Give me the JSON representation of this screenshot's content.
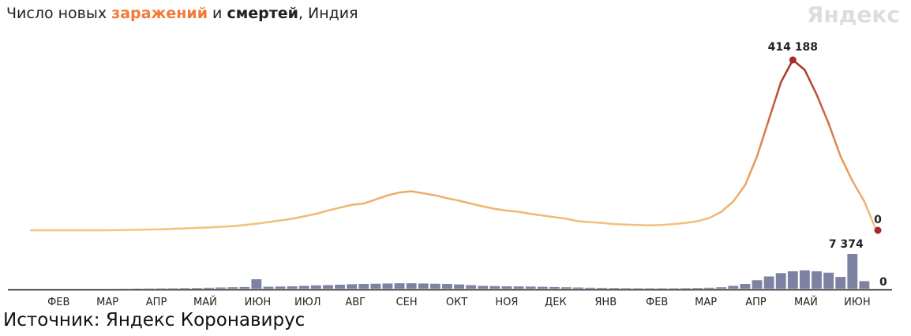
{
  "chart_data": {
    "type": "line-bar",
    "title_parts": [
      "Число новых ",
      " и ",
      ", Индия"
    ],
    "brand": "Яндекс",
    "source": "Источник: Яндекс Коронавирус",
    "xlim": [
      0,
      71
    ],
    "xticks": [
      {
        "value": 2.4,
        "label": "ФЕВ"
      },
      {
        "value": 6.5,
        "label": "МАР"
      },
      {
        "value": 10.6,
        "label": "АПР"
      },
      {
        "value": 14.7,
        "label": "МАЙ"
      },
      {
        "value": 19.1,
        "label": "ИЮН"
      },
      {
        "value": 23.3,
        "label": "ИЮЛ"
      },
      {
        "value": 27.3,
        "label": "АВГ"
      },
      {
        "value": 31.6,
        "label": "СЕН"
      },
      {
        "value": 35.8,
        "label": "ОКТ"
      },
      {
        "value": 40,
        "label": "НОЯ"
      },
      {
        "value": 44.1,
        "label": "ДЕК"
      },
      {
        "value": 48.3,
        "label": "ЯНВ"
      },
      {
        "value": 52.6,
        "label": "ФЕВ"
      },
      {
        "value": 56.7,
        "label": "МАР"
      },
      {
        "value": 60.9,
        "label": "АПР"
      },
      {
        "value": 65.1,
        "label": "МАЙ"
      },
      {
        "value": 69.4,
        "label": "ИЮН"
      }
    ],
    "series": [
      {
        "name": "заражений",
        "color": "#f07a3a",
        "gradient": [
          "#f2c47c",
          "#e8904f",
          "#a32b2b"
        ],
        "ylim": [
          0,
          414188
        ],
        "values": [
          0,
          0,
          0,
          0,
          0,
          0,
          100,
          300,
          700,
          1500,
          2000,
          2500,
          3500,
          4500,
          6000,
          7000,
          8500,
          10000,
          13000,
          16000,
          20000,
          24000,
          28000,
          34000,
          40000,
          48000,
          55000,
          62000,
          65000,
          75000,
          85000,
          92000,
          95000,
          90000,
          85000,
          78000,
          72000,
          65000,
          58000,
          52000,
          48000,
          45000,
          40000,
          36000,
          32000,
          28000,
          22000,
          20000,
          18000,
          15000,
          14000,
          13000,
          12000,
          13000,
          15000,
          18000,
          22000,
          30000,
          45000,
          70000,
          110000,
          180000,
          270000,
          360000,
          414188,
          390000,
          330000,
          260000,
          180000,
          120000,
          70000,
          0
        ],
        "value_labels": {
          "64": "414 188"
        }
      },
      {
        "name": "смертей",
        "color": "#222a3a",
        "bar_color": "#7d82a3",
        "ylim": [
          0,
          7374
        ],
        "values": [
          0,
          0,
          0,
          0,
          0,
          0,
          0,
          5,
          20,
          40,
          60,
          80,
          100,
          130,
          150,
          200,
          250,
          300,
          350,
          2003,
          420,
          450,
          500,
          600,
          700,
          750,
          850,
          950,
          1000,
          1050,
          1100,
          1150,
          1150,
          1100,
          1050,
          1000,
          900,
          750,
          600,
          550,
          500,
          480,
          450,
          400,
          350,
          300,
          250,
          200,
          180,
          150,
          120,
          110,
          100,
          100,
          100,
          120,
          150,
          200,
          300,
          600,
          1000,
          1800,
          2600,
          3300,
          3700,
          3900,
          3700,
          3400,
          2500,
          7374,
          1600,
          0
        ],
        "value_labels": {
          "69": "7 374"
        }
      }
    ]
  }
}
